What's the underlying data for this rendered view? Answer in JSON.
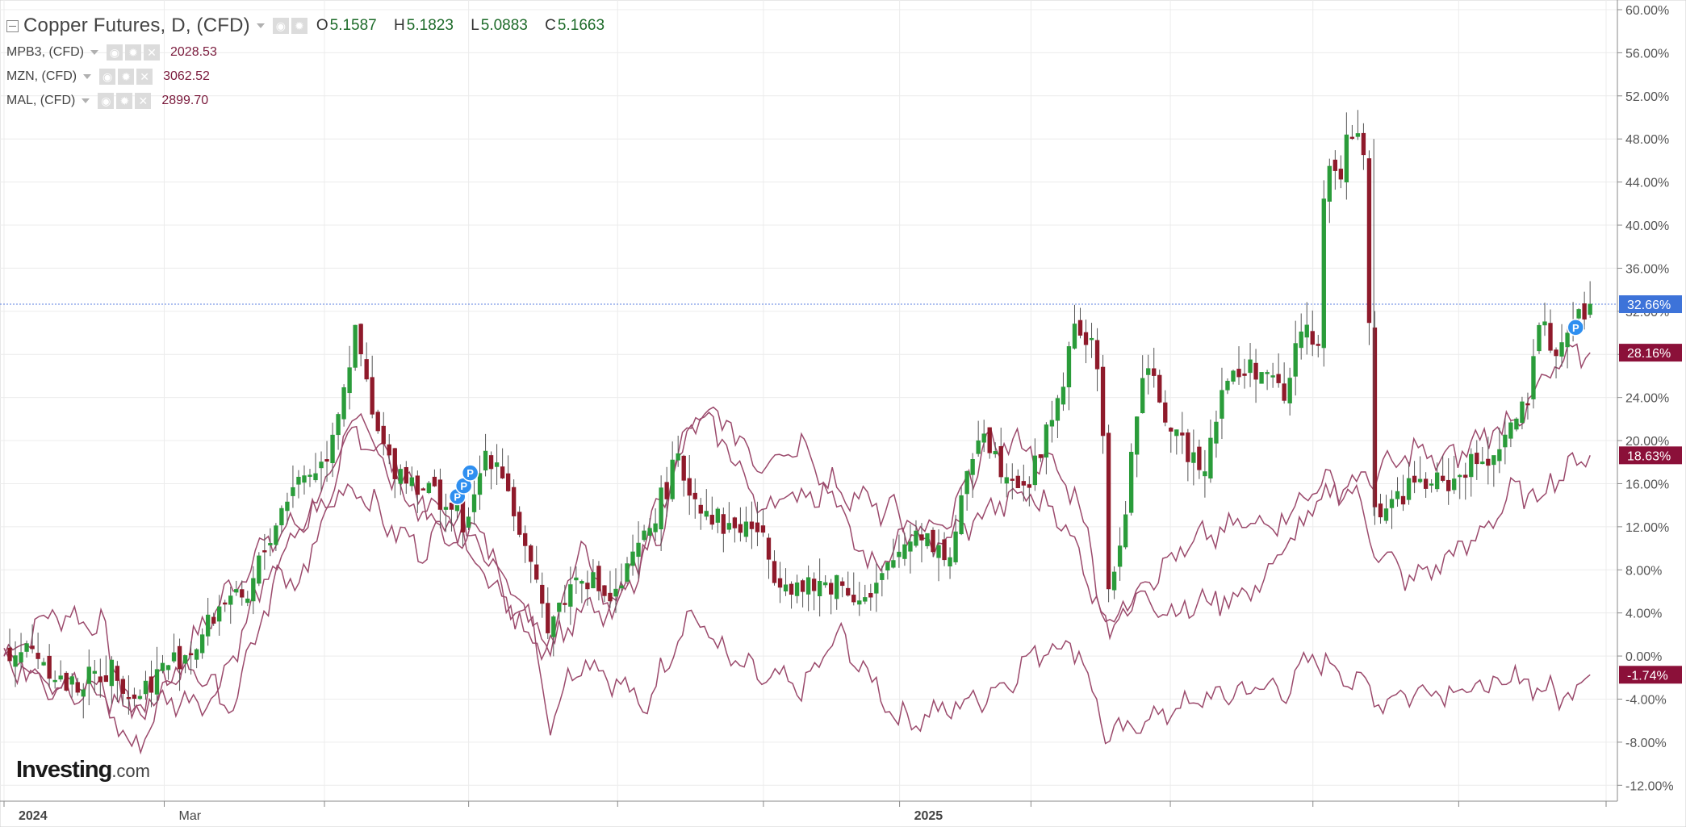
{
  "legend": {
    "main": {
      "title": "Copper Futures, D, (CFD)",
      "open_label": "O",
      "open": "5.1587",
      "high_label": "H",
      "high": "5.1823",
      "low_label": "L",
      "low": "5.0883",
      "close_label": "C",
      "close": "5.1663"
    },
    "series": [
      {
        "title": "MPB3, (CFD)",
        "value": "2028.53"
      },
      {
        "title": "MZN, (CFD)",
        "value": "3062.52"
      },
      {
        "title": "MAL, (CFD)",
        "value": "2899.70"
      }
    ]
  },
  "logo": {
    "brand": "Investing",
    "suffix": ".com"
  },
  "colors": {
    "up_candle": "#2a9c3a",
    "down_candle": "#8f1a2b",
    "comparison_line": "#9b4a6c",
    "last_price_line": "#5b7fe0",
    "price_marker_blue": "#3d73d9",
    "price_marker_red": "#8b1039",
    "grid": "#ececec",
    "axis_text": "#555555"
  },
  "icons": [
    "collapse-icon",
    "visibility-icon",
    "settings-icon",
    "close-icon",
    "pattern-p-icon"
  ],
  "chart_data": {
    "type": "candlestick",
    "y_axis_ticks": [
      "60.00%",
      "56.00%",
      "52.00%",
      "48.00%",
      "44.00%",
      "40.00%",
      "36.00%",
      "32.00%",
      "28.00%",
      "24.00%",
      "20.00%",
      "16.00%",
      "12.00%",
      "8.00%",
      "4.00%",
      "0.00%",
      "-4.00%",
      "-8.00%",
      "-12.00%"
    ],
    "ylim": [
      -14,
      60
    ],
    "x_axis_ticks": [
      {
        "label": "2024",
        "bold": true,
        "t": 0.0
      },
      {
        "label": "Mar",
        "bold": false,
        "t": 0.1
      },
      {
        "label": "",
        "bold": false,
        "t": 0.2
      },
      {
        "label": "",
        "bold": false,
        "t": 0.29
      },
      {
        "label": "",
        "bold": false,
        "t": 0.383
      },
      {
        "label": "",
        "bold": false,
        "t": 0.474
      },
      {
        "label": "2025",
        "bold": true,
        "t": 0.559
      },
      {
        "label": "",
        "bold": false,
        "t": 0.641
      },
      {
        "label": "",
        "bold": false,
        "t": 0.728
      },
      {
        "label": "",
        "bold": false,
        "t": 0.817
      },
      {
        "label": "",
        "bold": false,
        "t": 0.908
      },
      {
        "label": "",
        "bold": false,
        "t": 1.0
      }
    ],
    "last_price_pct": 32.66,
    "price_markers": [
      {
        "label": "32.66%",
        "value": 32.66,
        "style": "blue"
      },
      {
        "label": "28.16%",
        "value": 28.16,
        "style": "red"
      },
      {
        "label": "18.63%",
        "value": 18.63,
        "style": "red"
      },
      {
        "label": "-1.74%",
        "value": -1.74,
        "style": "red"
      }
    ],
    "pattern_markers": [
      {
        "label": "P",
        "t": 0.283,
        "value": 14.8
      },
      {
        "label": "P",
        "t": 0.287,
        "value": 15.8
      },
      {
        "label": "P",
        "t": 0.291,
        "value": 17.0
      },
      {
        "label": "P",
        "t": 0.981,
        "value": 30.5
      }
    ],
    "copper_close_anchors": [
      [
        0,
        0.5
      ],
      [
        0.02,
        0.5
      ],
      [
        0.04,
        -3
      ],
      [
        0.07,
        -1
      ],
      [
        0.08,
        -4
      ],
      [
        0.1,
        -1
      ],
      [
        0.12,
        1
      ],
      [
        0.14,
        6
      ],
      [
        0.15,
        4
      ],
      [
        0.16,
        9
      ],
      [
        0.18,
        16
      ],
      [
        0.2,
        18
      ],
      [
        0.22,
        30
      ],
      [
        0.23,
        22
      ],
      [
        0.24,
        18
      ],
      [
        0.27,
        15
      ],
      [
        0.29,
        12
      ],
      [
        0.3,
        19
      ],
      [
        0.31,
        18
      ],
      [
        0.33,
        7
      ],
      [
        0.34,
        3
      ],
      [
        0.36,
        8
      ],
      [
        0.38,
        5
      ],
      [
        0.4,
        11
      ],
      [
        0.42,
        18
      ],
      [
        0.43,
        15
      ],
      [
        0.45,
        12
      ],
      [
        0.47,
        12
      ],
      [
        0.48,
        8
      ],
      [
        0.5,
        6
      ],
      [
        0.52,
        7
      ],
      [
        0.54,
        5
      ],
      [
        0.56,
        10
      ],
      [
        0.57,
        12
      ],
      [
        0.59,
        9
      ],
      [
        0.61,
        22
      ],
      [
        0.62,
        18
      ],
      [
        0.64,
        16
      ],
      [
        0.66,
        25
      ],
      [
        0.67,
        31
      ],
      [
        0.68,
        28
      ],
      [
        0.685,
        25
      ],
      [
        0.69,
        4
      ],
      [
        0.7,
        14
      ],
      [
        0.71,
        26
      ],
      [
        0.72,
        25
      ],
      [
        0.73,
        20
      ],
      [
        0.75,
        18
      ],
      [
        0.76,
        25
      ],
      [
        0.78,
        27
      ],
      [
        0.8,
        24
      ],
      [
        0.81,
        31
      ],
      [
        0.82,
        29
      ],
      [
        0.825,
        45
      ],
      [
        0.835,
        45
      ],
      [
        0.84,
        49
      ],
      [
        0.85,
        46
      ],
      [
        0.855,
        13
      ],
      [
        0.88,
        16
      ],
      [
        0.9,
        16
      ],
      [
        0.93,
        19
      ],
      [
        0.95,
        23
      ],
      [
        0.96,
        31
      ],
      [
        0.97,
        28
      ],
      [
        0.98,
        31
      ],
      [
        0.99,
        32.6
      ]
    ],
    "comparison_series": [
      {
        "name": "MPB3, (CFD)",
        "last_value": -1.74,
        "anchors": [
          [
            0,
            0
          ],
          [
            0.03,
            4
          ],
          [
            0.06,
            3
          ],
          [
            0.08,
            -6
          ],
          [
            0.1,
            -3
          ],
          [
            0.13,
            4
          ],
          [
            0.16,
            10
          ],
          [
            0.19,
            13
          ],
          [
            0.22,
            21
          ],
          [
            0.25,
            17
          ],
          [
            0.27,
            12
          ],
          [
            0.3,
            11
          ],
          [
            0.33,
            3
          ],
          [
            0.34,
            -6
          ],
          [
            0.36,
            0
          ],
          [
            0.38,
            -2
          ],
          [
            0.4,
            -5
          ],
          [
            0.42,
            2
          ],
          [
            0.43,
            4
          ],
          [
            0.45,
            0
          ],
          [
            0.47,
            -2
          ],
          [
            0.5,
            -3
          ],
          [
            0.52,
            2
          ],
          [
            0.54,
            -2
          ],
          [
            0.56,
            -6
          ],
          [
            0.59,
            -5
          ],
          [
            0.62,
            -3
          ],
          [
            0.65,
            1
          ],
          [
            0.67,
            1
          ],
          [
            0.69,
            -8
          ],
          [
            0.71,
            -6
          ],
          [
            0.73,
            -5
          ],
          [
            0.75,
            -4
          ],
          [
            0.78,
            -3
          ],
          [
            0.8,
            -3
          ],
          [
            0.82,
            0
          ],
          [
            0.84,
            -2
          ],
          [
            0.86,
            -4
          ],
          [
            0.89,
            -3
          ],
          [
            0.91,
            -3
          ],
          [
            0.93,
            -3
          ],
          [
            0.95,
            -2
          ],
          [
            0.97,
            -4
          ],
          [
            0.99,
            -1.7
          ]
        ]
      },
      {
        "name": "MZN, (CFD)",
        "last_value": 18.63,
        "anchors": [
          [
            0,
            0
          ],
          [
            0.03,
            -2
          ],
          [
            0.06,
            -3
          ],
          [
            0.08,
            -9
          ],
          [
            0.1,
            -4
          ],
          [
            0.13,
            -4
          ],
          [
            0.16,
            6
          ],
          [
            0.19,
            13
          ],
          [
            0.22,
            16
          ],
          [
            0.24,
            12
          ],
          [
            0.26,
            10
          ],
          [
            0.28,
            12
          ],
          [
            0.31,
            6
          ],
          [
            0.34,
            1
          ],
          [
            0.36,
            10
          ],
          [
            0.38,
            4
          ],
          [
            0.41,
            14
          ],
          [
            0.43,
            22
          ],
          [
            0.45,
            22
          ],
          [
            0.47,
            18
          ],
          [
            0.5,
            20
          ],
          [
            0.52,
            14
          ],
          [
            0.54,
            8
          ],
          [
            0.56,
            11
          ],
          [
            0.59,
            12
          ],
          [
            0.61,
            19
          ],
          [
            0.63,
            20
          ],
          [
            0.65,
            18
          ],
          [
            0.67,
            15
          ],
          [
            0.69,
            2
          ],
          [
            0.71,
            6
          ],
          [
            0.73,
            4
          ],
          [
            0.75,
            5
          ],
          [
            0.78,
            6
          ],
          [
            0.8,
            10
          ],
          [
            0.82,
            14
          ],
          [
            0.84,
            16
          ],
          [
            0.86,
            9
          ],
          [
            0.88,
            7
          ],
          [
            0.9,
            9
          ],
          [
            0.92,
            11
          ],
          [
            0.94,
            15
          ],
          [
            0.96,
            15
          ],
          [
            0.97,
            17
          ],
          [
            0.99,
            18.6
          ]
        ]
      },
      {
        "name": "MAL, (CFD)",
        "last_value": 28.16,
        "anchors": [
          [
            0,
            0
          ],
          [
            0.03,
            -3
          ],
          [
            0.05,
            -3
          ],
          [
            0.08,
            -5
          ],
          [
            0.1,
            -2
          ],
          [
            0.12,
            -1
          ],
          [
            0.14,
            -5
          ],
          [
            0.17,
            7
          ],
          [
            0.19,
            8
          ],
          [
            0.22,
            23
          ],
          [
            0.24,
            17
          ],
          [
            0.26,
            13
          ],
          [
            0.28,
            13
          ],
          [
            0.3,
            10
          ],
          [
            0.32,
            3
          ],
          [
            0.34,
            1
          ],
          [
            0.36,
            4
          ],
          [
            0.38,
            4
          ],
          [
            0.41,
            12
          ],
          [
            0.43,
            22
          ],
          [
            0.45,
            20
          ],
          [
            0.47,
            14
          ],
          [
            0.5,
            15
          ],
          [
            0.52,
            16
          ],
          [
            0.54,
            14
          ],
          [
            0.56,
            13
          ],
          [
            0.58,
            10
          ],
          [
            0.6,
            12
          ],
          [
            0.62,
            14
          ],
          [
            0.64,
            15
          ],
          [
            0.66,
            13
          ],
          [
            0.68,
            6
          ],
          [
            0.69,
            3
          ],
          [
            0.71,
            7
          ],
          [
            0.73,
            9
          ],
          [
            0.75,
            11
          ],
          [
            0.77,
            12
          ],
          [
            0.8,
            13
          ],
          [
            0.82,
            16
          ],
          [
            0.84,
            16
          ],
          [
            0.86,
            17
          ],
          [
            0.88,
            19
          ],
          [
            0.9,
            18
          ],
          [
            0.92,
            20
          ],
          [
            0.95,
            23
          ],
          [
            0.97,
            27
          ],
          [
            0.99,
            28.2
          ]
        ]
      }
    ],
    "shock_events": [
      {
        "t": 0.855,
        "high": 48
      }
    ],
    "grid": true
  }
}
